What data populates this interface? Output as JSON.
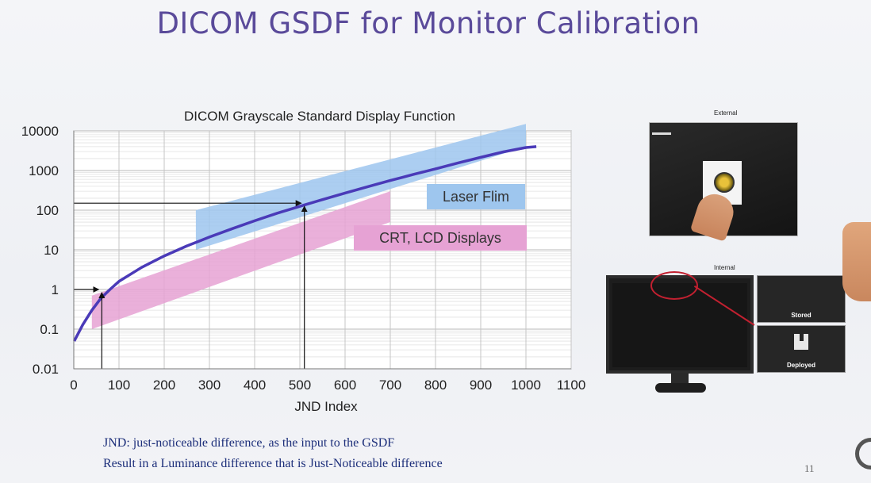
{
  "slide": {
    "title": "DICOM GSDF for Monitor Calibration",
    "footnote_1": "JND: just-noticeable difference, as the input to the GSDF",
    "footnote_2": "Result in a Luminance difference that is Just-Noticeable difference",
    "page_number": "11"
  },
  "photos": {
    "external_label": "External",
    "internal_label": "Internal",
    "stored_label": "Stored",
    "deployed_label": "Deployed"
  },
  "colors": {
    "title": "#5a4a9a",
    "curve": "#4a3ab8",
    "laser_band": "#9ec6ee",
    "crt_band": "#e6a2d4",
    "footnote": "#1c2e7a",
    "highlight": "#c22030"
  },
  "chart_data": {
    "type": "line",
    "title": "DICOM Grayscale Standard Display Function",
    "xlabel": "JND Index",
    "ylabel": "",
    "xlim": [
      0,
      1100
    ],
    "ylim": [
      0.01,
      10000
    ],
    "y_scale": "log",
    "x_ticks": [
      0,
      100,
      200,
      300,
      400,
      500,
      600,
      700,
      800,
      900,
      1000,
      1100
    ],
    "x_tick_labels": [
      "0",
      "100",
      "200",
      "300",
      "400",
      "500",
      "600",
      "700",
      "800",
      "900",
      "1000",
      "1100"
    ],
    "y_ticks": [
      0.01,
      0.1,
      1,
      10,
      100,
      1000,
      10000
    ],
    "y_tick_labels": [
      "0.01",
      "0.1",
      "1",
      "10",
      "100",
      "1000",
      "10000"
    ],
    "grid": true,
    "series": [
      {
        "x": [
          1,
          20,
          40,
          60,
          80,
          100,
          150,
          200,
          250,
          300,
          350,
          400,
          450,
          500,
          550,
          600,
          650,
          700,
          750,
          800,
          850,
          900,
          950,
          1000,
          1023
        ],
        "y": [
          0.05,
          0.13,
          0.3,
          0.6,
          1.0,
          1.6,
          3.6,
          7.0,
          12.5,
          21,
          34,
          54,
          84,
          125,
          185,
          270,
          390,
          560,
          790,
          1100,
          1550,
          2150,
          2950,
          3800,
          4000
        ]
      }
    ],
    "bands": [
      {
        "name": "Laser Flim",
        "x": [
          270,
          1000
        ],
        "y_lower": [
          10,
          4000
        ],
        "y_upper": [
          100,
          15000
        ]
      },
      {
        "name": "CRT, LCD Displays",
        "x": [
          40,
          700
        ],
        "y_lower": [
          0.1,
          50
        ],
        "y_upper": [
          0.7,
          300
        ]
      }
    ],
    "annotations": [
      {
        "jnd": 62,
        "luminance": 1
      },
      {
        "jnd": 510,
        "luminance": 150
      }
    ]
  }
}
